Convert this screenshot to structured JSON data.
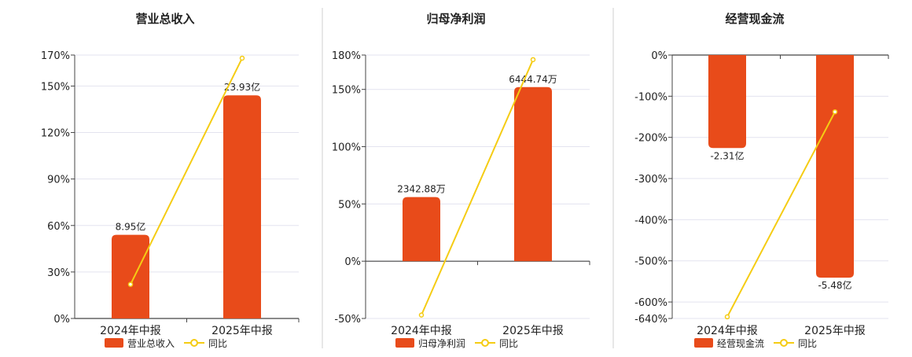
{
  "colors": {
    "bar": "#e84b1a",
    "line": "#f5cc14",
    "grid": "#e3e3ef",
    "axis": "#444444",
    "separator": "#cfcfcf",
    "text": "#222222"
  },
  "chart_data": [
    {
      "type": "bar",
      "title": "营业总收入",
      "categories": [
        "2024年中报",
        "2025年中报"
      ],
      "ylim": [
        0,
        170
      ],
      "yticks": [
        0,
        30,
        60,
        90,
        120,
        150,
        170
      ],
      "ytick_labels": [
        "0%",
        "30%",
        "60%",
        "90%",
        "120%",
        "150%",
        "170%"
      ],
      "grid": true,
      "legend": "bottom",
      "series": [
        {
          "name": "营业总收入",
          "kind": "bar",
          "values": [
            54,
            144
          ],
          "labels": [
            "8.95亿",
            "23.93亿"
          ]
        },
        {
          "name": "同比",
          "kind": "line",
          "values": [
            22,
            168
          ]
        }
      ]
    },
    {
      "type": "bar",
      "title": "归母净利润",
      "categories": [
        "2024年中报",
        "2025年中报"
      ],
      "ylim": [
        -50,
        180
      ],
      "yticks": [
        -50,
        0,
        50,
        100,
        150,
        180
      ],
      "ytick_labels": [
        "-50%",
        "0%",
        "50%",
        "100%",
        "150%",
        "180%"
      ],
      "grid": true,
      "legend": "bottom",
      "series": [
        {
          "name": "归母净利润",
          "kind": "bar",
          "values": [
            56,
            152
          ],
          "labels": [
            "2342.88万",
            "6444.74万"
          ]
        },
        {
          "name": "同比",
          "kind": "line",
          "values": [
            -47,
            176
          ]
        }
      ]
    },
    {
      "type": "bar",
      "title": "经营现金流",
      "categories": [
        "2024年中报",
        "2025年中报"
      ],
      "ylim": [
        -640,
        0
      ],
      "yticks": [
        -640,
        -600,
        -500,
        -400,
        -300,
        -200,
        -100,
        0
      ],
      "ytick_labels": [
        "-640%",
        "-600%",
        "-500%",
        "-400%",
        "-300%",
        "-200%",
        "-100%",
        "0%"
      ],
      "grid": true,
      "legend": "bottom",
      "series": [
        {
          "name": "经营现金流",
          "kind": "bar",
          "values": [
            -226,
            -541
          ],
          "labels": [
            "-2.31亿",
            "-5.48亿"
          ]
        },
        {
          "name": "同比",
          "kind": "line",
          "values": [
            -636,
            -138
          ]
        }
      ]
    }
  ]
}
